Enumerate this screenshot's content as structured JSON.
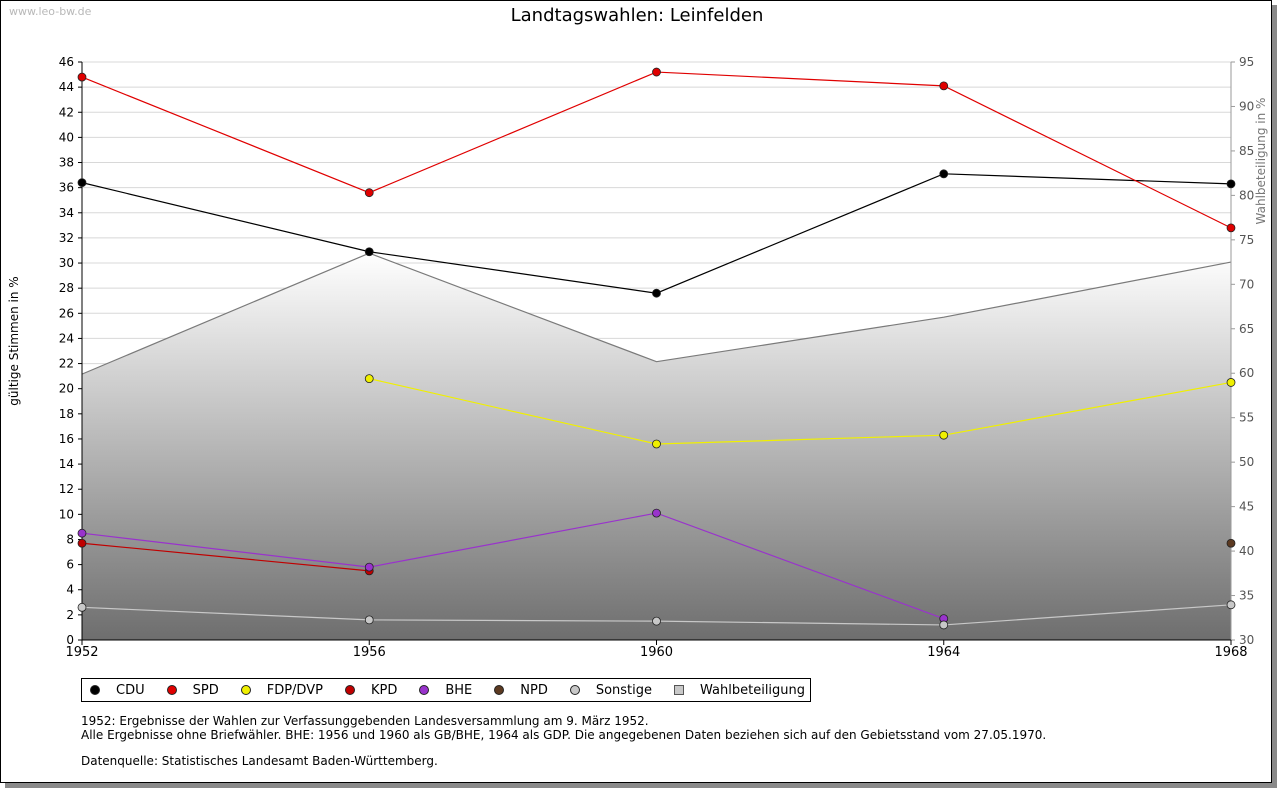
{
  "watermark": "www.leo-bw.de",
  "legend_labels": [
    "CDU",
    "SPD",
    "FDP/DVP",
    "KPD",
    "BHE",
    "NPD",
    "Sonstige",
    "Wahlbeteiligung"
  ],
  "notes": {
    "line1": "1952: Ergebnisse der Wahlen zur Verfassunggebenden Landesversammlung am 9. März 1952.",
    "line2": "Alle Ergebnisse ohne Briefwähler. BHE: 1956 und 1960 als GB/BHE, 1964 als GDP. Die angegebenen Daten beziehen sich auf den Gebietsstand vom 27.05.1970.",
    "source": "Datenquelle: Statistisches Landesamt Baden-Württemberg."
  },
  "chart_data": {
    "type": "line",
    "title": "Landtagswahlen: Leinfelden",
    "ylabel": "gültige Stimmen in %",
    "y2label": "Wahlbeteiligung in %",
    "categories": [
      "1952",
      "1956",
      "1960",
      "1964",
      "1968"
    ],
    "ylim": [
      0,
      46
    ],
    "yticks": [
      0,
      2,
      4,
      6,
      8,
      10,
      12,
      14,
      16,
      18,
      20,
      22,
      24,
      26,
      28,
      30,
      32,
      34,
      36,
      38,
      40,
      42,
      44,
      46
    ],
    "y2lim": [
      30,
      95
    ],
    "y2ticks": [
      30,
      35,
      40,
      45,
      50,
      55,
      60,
      65,
      70,
      75,
      80,
      85,
      90,
      95
    ],
    "grid": true,
    "series": [
      {
        "name": "CDU",
        "color": "#000000",
        "values": [
          36.4,
          30.9,
          27.6,
          37.1,
          36.3
        ]
      },
      {
        "name": "SPD",
        "color": "#e00000",
        "values": [
          44.8,
          35.6,
          45.2,
          44.1,
          32.8
        ]
      },
      {
        "name": "FDP/DVP",
        "color": "#f0f000",
        "values": [
          null,
          20.8,
          15.6,
          16.3,
          20.5
        ]
      },
      {
        "name": "KPD",
        "color": "#c00000",
        "values": [
          7.7,
          5.5,
          null,
          null,
          null
        ]
      },
      {
        "name": "BHE",
        "color": "#9933cc",
        "values": [
          8.5,
          5.8,
          10.1,
          1.7,
          null
        ]
      },
      {
        "name": "NPD",
        "color": "#5c3a21",
        "values": [
          null,
          null,
          null,
          null,
          7.7
        ]
      },
      {
        "name": "Sonstige",
        "color": "#c8c8c8",
        "values": [
          2.6,
          1.6,
          1.5,
          1.2,
          2.8
        ]
      }
    ],
    "turnout": {
      "name": "Wahlbeteiligung",
      "axis": "right",
      "values": [
        59.9,
        73.5,
        61.3,
        66.3,
        72.5
      ]
    }
  }
}
